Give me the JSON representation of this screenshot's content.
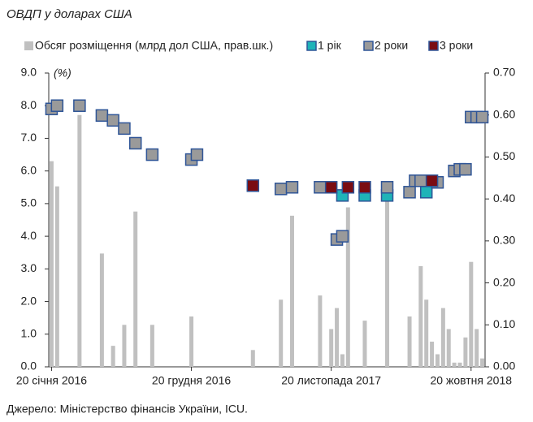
{
  "chart_data": {
    "type": "combo",
    "title": "ОВДП у доларах США",
    "y_annotation": "(%)",
    "source": "Джерело: Міністерство фінансів України, ICU.",
    "categories": [
      "20 січня 2016",
      null,
      null,
      null,
      null,
      null,
      null,
      null,
      null,
      null,
      null,
      null,
      null,
      null,
      null,
      null,
      null,
      null,
      null,
      null,
      null,
      null,
      null,
      null,
      null,
      "20 грудня 2016",
      null,
      null,
      null,
      null,
      null,
      null,
      null,
      null,
      null,
      null,
      null,
      null,
      null,
      null,
      null,
      null,
      null,
      null,
      null,
      null,
      null,
      null,
      null,
      null,
      "20 листопада 2017",
      null,
      null,
      null,
      null,
      null,
      null,
      null,
      null,
      null,
      null,
      null,
      null,
      null,
      null,
      null,
      null,
      null,
      null,
      null,
      null,
      null,
      null,
      null,
      null,
      "20 жовтня 2018",
      null,
      null
    ],
    "series": [
      {
        "name": "Обсяг розміщення (млрд дол США, прав.шк.)",
        "type": "bar",
        "axis": "y2",
        "color": "#c0c0c0",
        "values": [
          0.49,
          0.43,
          null,
          null,
          null,
          0.6,
          null,
          null,
          null,
          0.27,
          null,
          0.05,
          null,
          0.1,
          null,
          0.37,
          null,
          null,
          0.1,
          null,
          null,
          null,
          null,
          null,
          null,
          0.12,
          null,
          null,
          null,
          null,
          null,
          null,
          null,
          null,
          null,
          null,
          0.04,
          null,
          null,
          null,
          null,
          0.16,
          null,
          0.36,
          null,
          null,
          null,
          null,
          0.17,
          null,
          0.09,
          0.14,
          0.03,
          0.38,
          null,
          null,
          0.11,
          null,
          null,
          null,
          0.4,
          null,
          null,
          null,
          0.12,
          null,
          0.24,
          0.16,
          0.06,
          0.03,
          0.14,
          0.09,
          0.01,
          0.01,
          0.07,
          0.25,
          0.09,
          0.02
        ]
      },
      {
        "name": "1 рік",
        "type": "scatter",
        "color": "#1fb3b8",
        "values": [
          null,
          null,
          null,
          null,
          null,
          null,
          null,
          null,
          null,
          null,
          null,
          null,
          null,
          null,
          null,
          null,
          null,
          null,
          null,
          null,
          null,
          null,
          null,
          null,
          null,
          null,
          null,
          null,
          null,
          null,
          null,
          null,
          null,
          null,
          null,
          null,
          null,
          null,
          null,
          null,
          null,
          null,
          null,
          null,
          null,
          null,
          null,
          null,
          null,
          null,
          null,
          null,
          5.25,
          null,
          null,
          null,
          5.25,
          null,
          null,
          null,
          5.25,
          null,
          null,
          null,
          null,
          null,
          null,
          5.35,
          null,
          null,
          null,
          null,
          null,
          null,
          null,
          null,
          null,
          null
        ]
      },
      {
        "name": "2 роки",
        "type": "scatter",
        "color": "#9a9a9a",
        "values": [
          7.9,
          8.0,
          null,
          null,
          null,
          8.0,
          null,
          null,
          null,
          7.7,
          null,
          7.55,
          null,
          7.3,
          null,
          6.85,
          null,
          null,
          6.5,
          null,
          null,
          null,
          null,
          null,
          null,
          6.35,
          6.5,
          null,
          null,
          null,
          null,
          null,
          null,
          null,
          null,
          null,
          null,
          null,
          null,
          null,
          null,
          5.45,
          null,
          5.5,
          null,
          null,
          null,
          null,
          5.5,
          null,
          null,
          3.9,
          4.0,
          null,
          null,
          null,
          null,
          null,
          null,
          null,
          5.5,
          null,
          null,
          null,
          5.35,
          5.7,
          5.7,
          null,
          null,
          5.65,
          null,
          null,
          6.0,
          6.05,
          6.05,
          7.65,
          7.65,
          7.65
        ]
      },
      {
        "name": "3 роки",
        "type": "scatter",
        "color": "#7a0c12",
        "values": [
          null,
          null,
          null,
          null,
          null,
          null,
          null,
          null,
          null,
          null,
          null,
          null,
          null,
          null,
          null,
          null,
          null,
          null,
          null,
          null,
          null,
          null,
          null,
          null,
          null,
          null,
          null,
          null,
          null,
          null,
          null,
          null,
          null,
          null,
          null,
          null,
          5.55,
          null,
          null,
          null,
          null,
          null,
          null,
          null,
          null,
          null,
          null,
          null,
          null,
          null,
          5.5,
          null,
          null,
          5.5,
          null,
          null,
          5.5,
          null,
          null,
          null,
          null,
          null,
          null,
          null,
          null,
          null,
          null,
          null,
          5.7,
          null,
          null,
          null,
          null,
          null,
          null,
          null,
          null,
          null
        ]
      }
    ],
    "ylim": [
      0,
      9
    ],
    "yticks": [
      {
        "value": 0,
        "label": "0.0"
      },
      {
        "value": 1,
        "label": "1.0"
      },
      {
        "value": 2,
        "label": "2.0"
      },
      {
        "value": 3,
        "label": "3.0"
      },
      {
        "value": 4,
        "label": "4.0"
      },
      {
        "value": 5,
        "label": "5.0"
      },
      {
        "value": 6,
        "label": "6.0"
      },
      {
        "value": 7,
        "label": "7.0"
      },
      {
        "value": 8,
        "label": "8.0"
      },
      {
        "value": 9,
        "label": "9.0"
      }
    ],
    "y2lim": [
      0,
      0.7
    ],
    "y2ticks": [
      {
        "value": 0,
        "label": "0.00"
      },
      {
        "value": 0.1,
        "label": "0.10"
      },
      {
        "value": 0.2,
        "label": "0.20"
      },
      {
        "value": 0.3,
        "label": "0.30"
      },
      {
        "value": 0.4,
        "label": "0.40"
      },
      {
        "value": 0.5,
        "label": "0.50"
      },
      {
        "value": 0.6,
        "label": "0.60"
      },
      {
        "value": 0.7,
        "label": "0.70"
      }
    ]
  }
}
